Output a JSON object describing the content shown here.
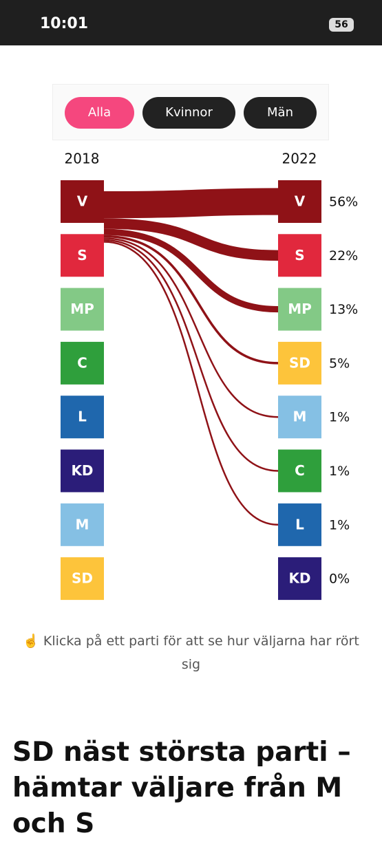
{
  "status_bar": {
    "time": "10:01",
    "battery": "56"
  },
  "filters": [
    "Alla",
    "Kvinnor",
    "Män"
  ],
  "chart_data": {
    "type": "sankey",
    "source_label": "2018",
    "target_label": "2022",
    "sources": [
      "V",
      "S",
      "MP",
      "C",
      "L",
      "KD",
      "M",
      "SD"
    ],
    "source_colors": [
      "#8f1217",
      "#e1283d",
      "#83c986",
      "#2f9f3c",
      "#1f67ad",
      "#2b1d79",
      "#85c0e4",
      "#fdc43b"
    ],
    "flow_source": "V",
    "flow_color": "#8f1217",
    "categories": [
      "V",
      "S",
      "MP",
      "SD",
      "M",
      "C",
      "L",
      "KD"
    ],
    "colors": [
      "#8f1217",
      "#e1283d",
      "#83c986",
      "#fdc43b",
      "#85c0e4",
      "#2f9f3c",
      "#1f67ad",
      "#2b1d79"
    ],
    "values": [
      56,
      22,
      13,
      5,
      1,
      1,
      1,
      0
    ],
    "value_labels": [
      "56%",
      "22%",
      "13%",
      "5%",
      "1%",
      "1%",
      "1%",
      "0%"
    ]
  },
  "hint": {
    "icon": "☝️",
    "text": "Klicka på ett parti för att se hur väljarna har rört sig"
  },
  "headline": "SD näst största parti – hämtar väljare från M och S"
}
